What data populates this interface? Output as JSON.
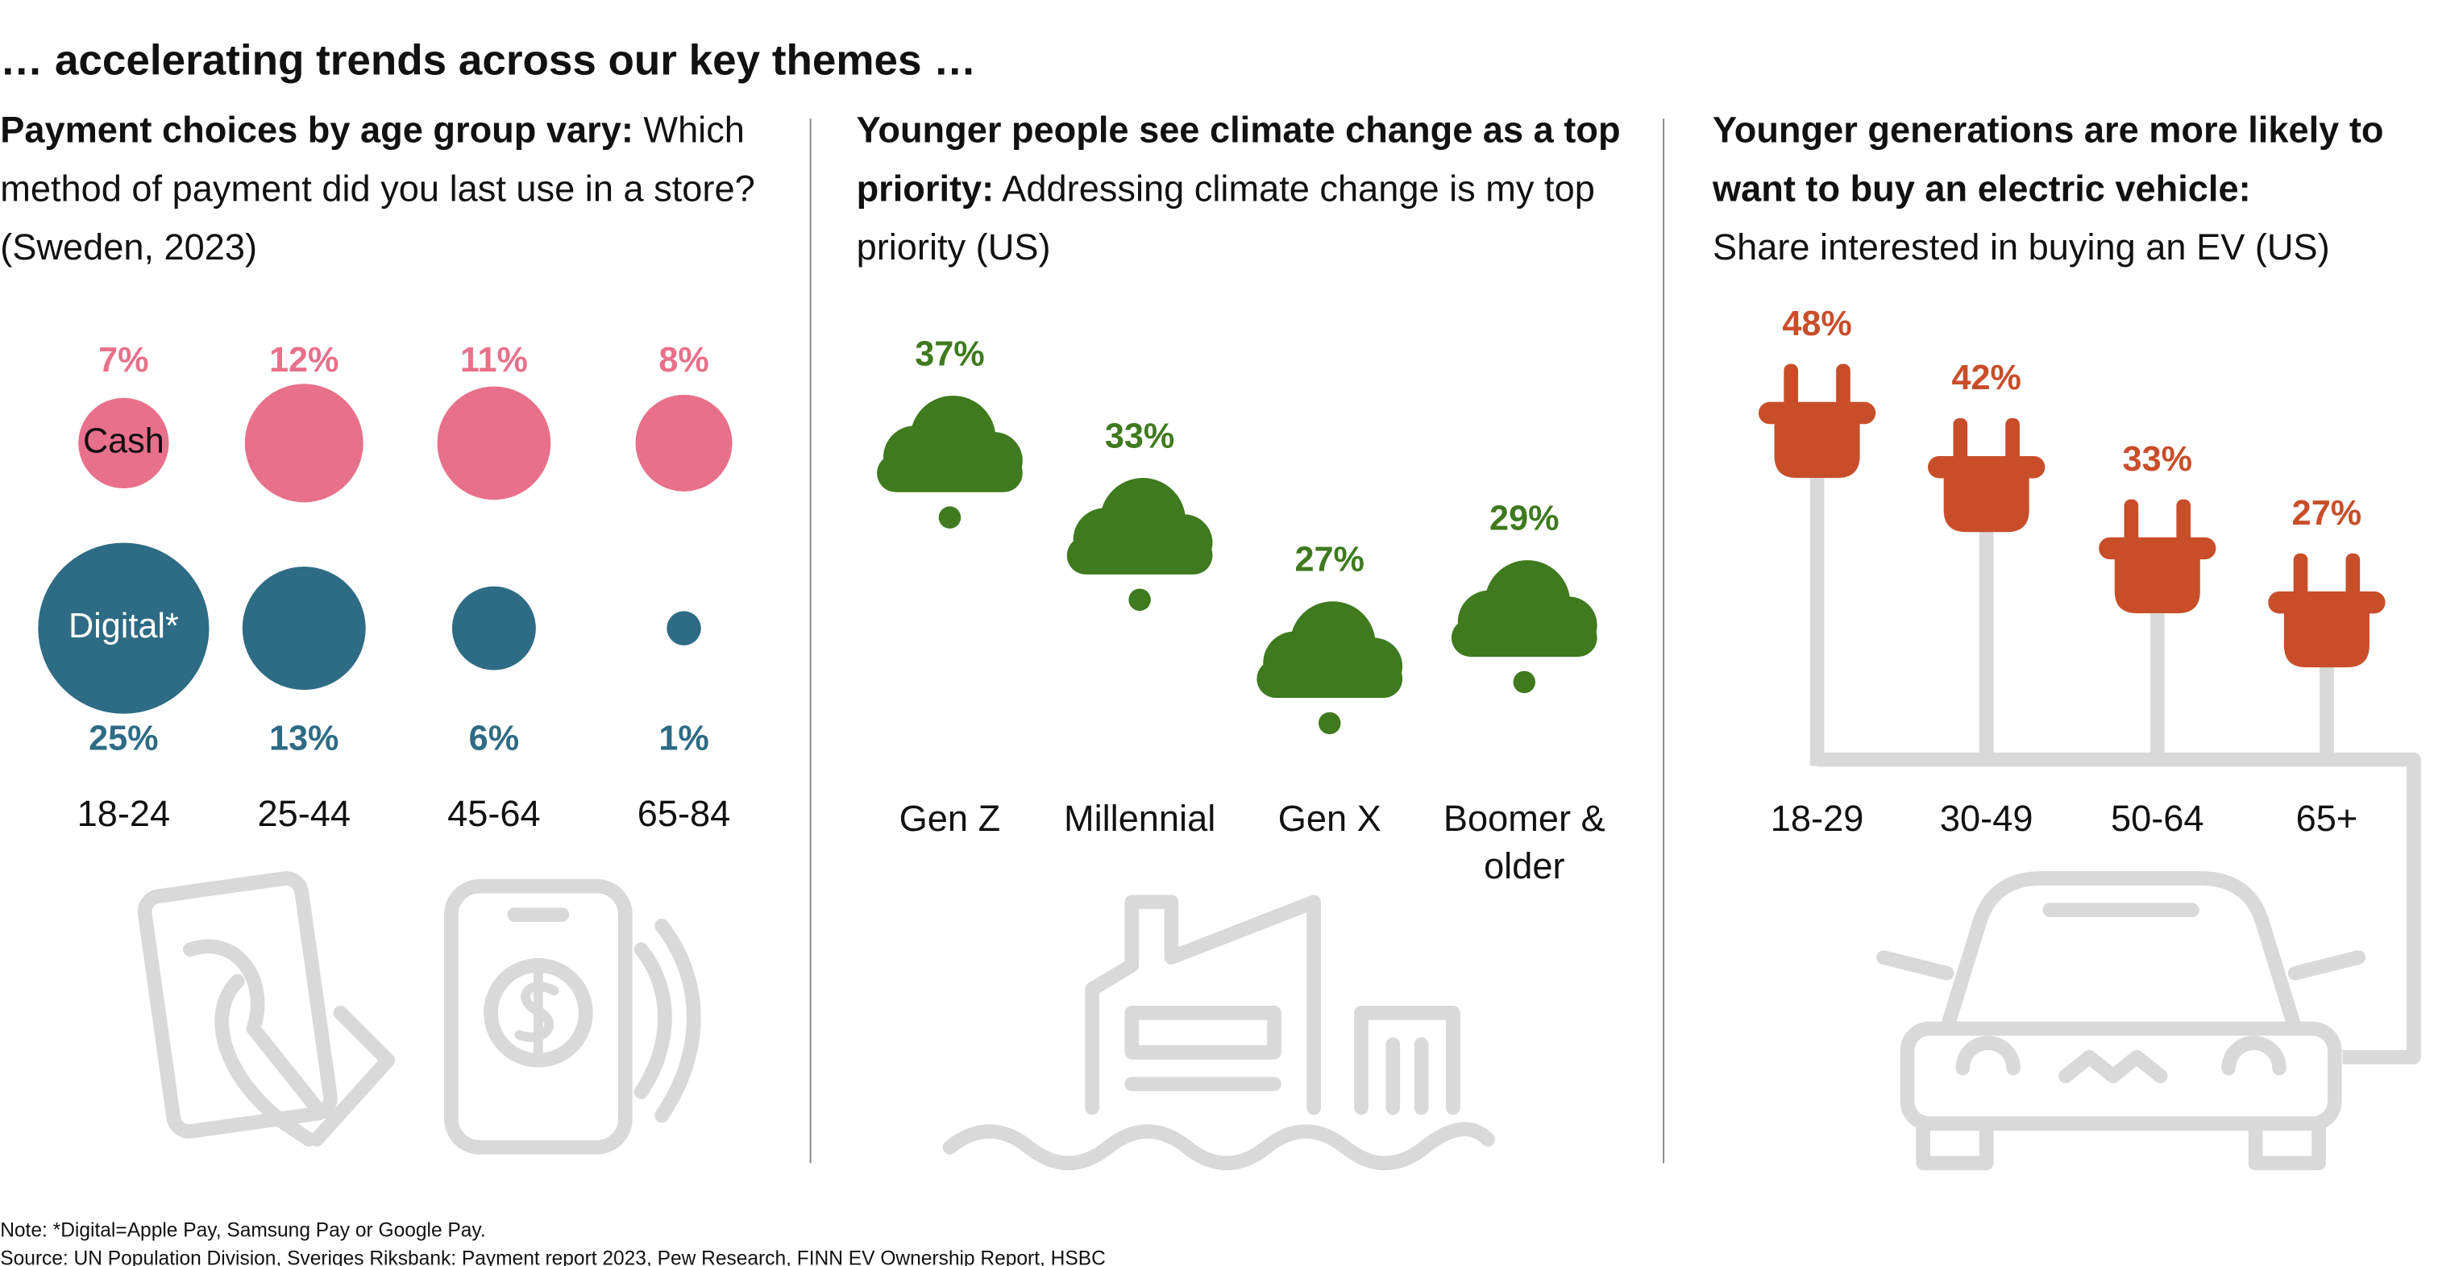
{
  "page_title": "… accelerating trends across our key themes …",
  "chart_data": [
    {
      "type": "bubble",
      "title": "Payment choices by age group vary:",
      "subtitle": "Which method of payment did you last use in a store? (Sweden, 2023)",
      "categories": [
        "18-24",
        "25-44",
        "45-64",
        "65-84"
      ],
      "series": [
        {
          "name": "Cash",
          "color": "#e8708a",
          "values": [
            7,
            12,
            11,
            8
          ],
          "value_labels": [
            "7%",
            "12%",
            "11%",
            "8%"
          ]
        },
        {
          "name": "Digital*",
          "color": "#2e6b85",
          "values": [
            25,
            13,
            6,
            1
          ],
          "value_labels": [
            "25%",
            "13%",
            "6%",
            "1%"
          ]
        }
      ]
    },
    {
      "type": "cloud",
      "title": "Younger people see climate change as a top priority:",
      "subtitle": "Addressing climate change is my top priority (US)",
      "categories": [
        "Gen Z",
        "Millennial",
        "Gen X",
        "Boomer & older"
      ],
      "color": "#3f7a1f",
      "values": [
        37,
        33,
        27,
        29
      ],
      "value_labels": [
        "37%",
        "33%",
        "27%",
        "29%"
      ]
    },
    {
      "type": "plug",
      "title": "Younger generations are more likely to want to buy an electric vehicle:",
      "subtitle": "Share interested in buying an EV (US)",
      "categories": [
        "18-29",
        "30-49",
        "50-64",
        "65+"
      ],
      "color": "#c84e2a",
      "values": [
        48,
        42,
        33,
        27
      ],
      "value_labels": [
        "48%",
        "42%",
        "33%",
        "27%"
      ]
    }
  ],
  "notes": [
    "Note: *Digital=Apple Pay, Samsung Pay or Google Pay.",
    "Source: UN Population Division, Sveriges Riksbank: Payment report 2023, Pew Research, FINN EV Ownership Report, HSBC"
  ]
}
